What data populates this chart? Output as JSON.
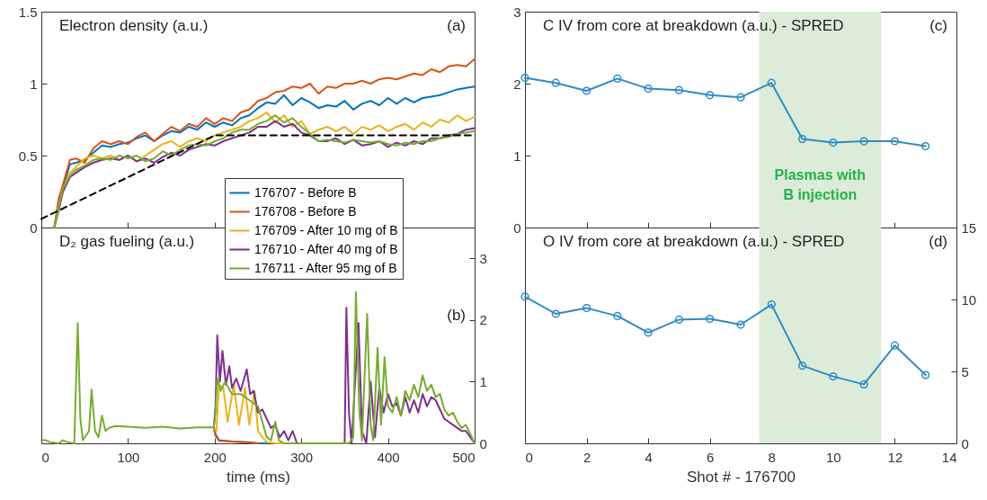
{
  "chart_data": [
    {
      "type": "line",
      "title": "Electron density (a.u.)",
      "annotations": [
        "(a)"
      ],
      "xlim": [
        0,
        500
      ],
      "xticks": [
        0,
        100,
        200,
        300,
        400,
        500
      ],
      "ylim": [
        0,
        1.5
      ],
      "yticks": [
        0,
        0.5,
        1,
        1.5
      ],
      "tick_labels": "y",
      "legend": "bottom right",
      "series": [
        {
          "name": "176707 - Before B",
          "color": "#0072bd",
          "x": [
            15,
            20,
            25,
            33,
            40,
            50,
            60,
            70,
            80,
            90,
            100,
            110,
            120,
            130,
            140,
            150,
            160,
            170,
            180,
            190,
            200,
            210,
            220,
            230,
            240,
            250,
            260,
            270,
            280,
            290,
            300,
            310,
            320,
            330,
            340,
            350,
            360,
            370,
            380,
            390,
            400,
            410,
            420,
            430,
            440,
            450,
            460,
            470,
            480,
            490,
            500
          ],
          "values": [
            0,
            0.18,
            0.28,
            0.44,
            0.45,
            0.47,
            0.52,
            0.57,
            0.56,
            0.58,
            0.59,
            0.62,
            0.64,
            0.6,
            0.64,
            0.67,
            0.66,
            0.7,
            0.68,
            0.73,
            0.7,
            0.73,
            0.71,
            0.76,
            0.78,
            0.83,
            0.87,
            0.86,
            0.92,
            0.85,
            0.9,
            0.87,
            0.83,
            0.85,
            0.84,
            0.88,
            0.82,
            0.86,
            0.88,
            0.85,
            0.9,
            0.86,
            0.9,
            0.87,
            0.9,
            0.91,
            0.92,
            0.94,
            0.96,
            0.97,
            0.98
          ]
        },
        {
          "name": "176708 - Before B",
          "color": "#d95319",
          "x": [
            15,
            20,
            25,
            33,
            40,
            50,
            60,
            70,
            80,
            90,
            100,
            110,
            120,
            130,
            140,
            150,
            160,
            170,
            180,
            190,
            200,
            210,
            220,
            230,
            240,
            250,
            260,
            270,
            280,
            290,
            300,
            310,
            320,
            330,
            340,
            350,
            360,
            370,
            380,
            390,
            400,
            410,
            420,
            430,
            440,
            450,
            460,
            470,
            480,
            490,
            500
          ],
          "values": [
            0,
            0.2,
            0.3,
            0.47,
            0.48,
            0.45,
            0.55,
            0.6,
            0.58,
            0.6,
            0.58,
            0.63,
            0.66,
            0.6,
            0.65,
            0.7,
            0.67,
            0.72,
            0.7,
            0.76,
            0.72,
            0.76,
            0.74,
            0.8,
            0.82,
            0.88,
            0.9,
            0.94,
            0.95,
            0.98,
            0.97,
            1.0,
            0.93,
            0.98,
            0.97,
            1.0,
            1.0,
            1.02,
            1.0,
            1.03,
            1.04,
            1.03,
            1.05,
            1.07,
            1.06,
            1.1,
            1.08,
            1.12,
            1.13,
            1.12,
            1.17
          ]
        },
        {
          "name": "176709 - After 10 mg of B",
          "color": "#edb120",
          "x": [
            15,
            20,
            25,
            33,
            40,
            50,
            60,
            70,
            80,
            90,
            100,
            110,
            120,
            130,
            140,
            150,
            160,
            170,
            180,
            190,
            200,
            210,
            220,
            230,
            240,
            250,
            260,
            270,
            280,
            290,
            300,
            310,
            320,
            330,
            340,
            350,
            360,
            370,
            380,
            390,
            400,
            410,
            420,
            430,
            440,
            450,
            460,
            470,
            480,
            490,
            500
          ],
          "values": [
            0,
            0.15,
            0.27,
            0.38,
            0.42,
            0.48,
            0.5,
            0.48,
            0.5,
            0.47,
            0.5,
            0.46,
            0.5,
            0.54,
            0.58,
            0.6,
            0.56,
            0.6,
            0.62,
            0.6,
            0.64,
            0.66,
            0.68,
            0.7,
            0.74,
            0.76,
            0.8,
            0.73,
            0.78,
            0.7,
            0.74,
            0.65,
            0.68,
            0.7,
            0.67,
            0.7,
            0.65,
            0.7,
            0.68,
            0.71,
            0.67,
            0.7,
            0.72,
            0.68,
            0.73,
            0.7,
            0.75,
            0.73,
            0.78,
            0.74,
            0.77
          ]
        },
        {
          "name": "176710 - After 40 mg of B",
          "color": "#7e2f8e",
          "x": [
            15,
            20,
            25,
            33,
            40,
            50,
            60,
            70,
            80,
            90,
            100,
            110,
            120,
            130,
            140,
            150,
            160,
            170,
            180,
            190,
            200,
            210,
            220,
            230,
            240,
            250,
            260,
            270,
            280,
            290,
            300,
            310,
            320,
            330,
            340,
            350,
            360,
            370,
            380,
            390,
            400,
            410,
            420,
            430,
            440,
            450,
            460,
            470,
            480,
            490,
            500
          ],
          "values": [
            0,
            0.12,
            0.25,
            0.35,
            0.38,
            0.42,
            0.45,
            0.47,
            0.48,
            0.47,
            0.5,
            0.46,
            0.48,
            0.45,
            0.49,
            0.52,
            0.5,
            0.54,
            0.56,
            0.58,
            0.57,
            0.6,
            0.62,
            0.64,
            0.66,
            0.7,
            0.7,
            0.74,
            0.7,
            0.72,
            0.66,
            0.64,
            0.6,
            0.6,
            0.62,
            0.58,
            0.61,
            0.57,
            0.58,
            0.6,
            0.56,
            0.59,
            0.57,
            0.6,
            0.58,
            0.62,
            0.62,
            0.64,
            0.65,
            0.68,
            0.69
          ]
        },
        {
          "name": "176711 - After 95 mg of B",
          "color": "#77ac30",
          "x": [
            15,
            20,
            25,
            33,
            40,
            50,
            60,
            70,
            80,
            90,
            100,
            110,
            120,
            130,
            140,
            150,
            160,
            170,
            180,
            190,
            200,
            210,
            220,
            230,
            240,
            250,
            260,
            270,
            280,
            290,
            300,
            310,
            320,
            330,
            340,
            350,
            360,
            370,
            380,
            390,
            400,
            410,
            420,
            430,
            440,
            450,
            460,
            470,
            480,
            490,
            500
          ],
          "values": [
            0,
            0.14,
            0.27,
            0.36,
            0.4,
            0.43,
            0.47,
            0.48,
            0.47,
            0.5,
            0.48,
            0.5,
            0.46,
            0.48,
            0.53,
            0.5,
            0.54,
            0.57,
            0.58,
            0.57,
            0.6,
            0.62,
            0.66,
            0.68,
            0.68,
            0.72,
            0.74,
            0.78,
            0.73,
            0.76,
            0.7,
            0.65,
            0.6,
            0.61,
            0.6,
            0.59,
            0.61,
            0.6,
            0.59,
            0.6,
            0.58,
            0.57,
            0.59,
            0.58,
            0.6,
            0.6,
            0.62,
            0.63,
            0.65,
            0.66,
            0.67
          ]
        },
        {
          "color": "#000000",
          "line_style": "dashed",
          "x": [
            0,
            200,
            500
          ],
          "values": [
            0.06,
            0.64,
            0.64
          ]
        }
      ]
    },
    {
      "type": "line",
      "title": "D₂ gas fueling (a.u.)",
      "annotations": [
        "(b)"
      ],
      "xlabel": "time (ms)",
      "xlim": [
        0,
        500
      ],
      "xticks": [
        0,
        100,
        200,
        300,
        400,
        500
      ],
      "ylim": [
        0,
        3.5
      ],
      "yticks": [
        0,
        1,
        2,
        3
      ],
      "series": [
        {
          "color": "#0072bd",
          "x": [
            199,
            201,
            205,
            220,
            240,
            250,
            260
          ],
          "values": [
            0.26,
            0.15,
            0.05,
            0.03,
            0.02,
            0,
            0
          ]
        },
        {
          "color": "#d95319",
          "x": [
            199,
            201,
            205,
            220,
            240,
            250
          ],
          "values": [
            0.26,
            0.12,
            0.04,
            0.03,
            0.01,
            0
          ]
        },
        {
          "color": "#edb120",
          "x": [
            199,
            202,
            205,
            210,
            215,
            222,
            228,
            235,
            240,
            246,
            250,
            255,
            260,
            270,
            280
          ],
          "values": [
            0.26,
            0.2,
            0.95,
            0.9,
            0.35,
            0.95,
            0.3,
            0.9,
            0.3,
            0.85,
            0.2,
            0.1,
            0.02,
            0,
            0
          ]
        },
        {
          "color": "#7e2f8e",
          "x": [
            199,
            201,
            203,
            206,
            209,
            213,
            217,
            220,
            225,
            230,
            237,
            241,
            245,
            250,
            255,
            260,
            265,
            270,
            275,
            280,
            285,
            290,
            295,
            300,
            350,
            352,
            355,
            358,
            366,
            370,
            375,
            380,
            385,
            390,
            395,
            400,
            405,
            410,
            415,
            420,
            425,
            430,
            435,
            440,
            445,
            450,
            455,
            460,
            465,
            470,
            475,
            480,
            485,
            490,
            495,
            500
          ],
          "values": [
            0.26,
            0.6,
            1.75,
            1.0,
            1.5,
            0.95,
            1.25,
            0.9,
            1.05,
            0.85,
            1.2,
            0.8,
            0.85,
            0.5,
            0.55,
            0.4,
            0.25,
            0.3,
            0.1,
            0.2,
            0.05,
            0.2,
            0,
            0,
            0,
            2.2,
            0.5,
            0,
            1.95,
            0.2,
            0,
            1.0,
            0.1,
            0.9,
            0.5,
            0.8,
            0.6,
            0.65,
            0.45,
            0.75,
            0.5,
            0.7,
            0.5,
            0.8,
            0.6,
            0.75,
            0.7,
            0.55,
            0.4,
            0.35,
            0.3,
            0.25,
            0.2,
            0.2,
            0.1,
            0
          ]
        },
        {
          "color": "#77ac30",
          "x": [
            0,
            5,
            10,
            20,
            25,
            30,
            38,
            42,
            45,
            48,
            55,
            58,
            62,
            66,
            70,
            74,
            78,
            85,
            100,
            120,
            140,
            160,
            180,
            199,
            201,
            203,
            207,
            212,
            220,
            230,
            240,
            250,
            255,
            260,
            265,
            270,
            274,
            280,
            300,
            355,
            360,
            363,
            367,
            370,
            376,
            380,
            383,
            388,
            392,
            396,
            400,
            405,
            410,
            415,
            420,
            425,
            430,
            435,
            440,
            445,
            450,
            455,
            460,
            465,
            470,
            475,
            480,
            485,
            490,
            495,
            500
          ],
          "values": [
            0.05,
            0.05,
            0.02,
            0,
            0.05,
            0.02,
            0,
            1.95,
            0.4,
            0.05,
            0.2,
            0.87,
            0.2,
            0.1,
            0.45,
            0.2,
            0.25,
            0.28,
            0.27,
            0.25,
            0.27,
            0.24,
            0.26,
            0.26,
            0.5,
            1.05,
            0.85,
            1.0,
            0.8,
            0.8,
            0.7,
            0.6,
            0.35,
            0.1,
            0.05,
            0.35,
            0.05,
            0,
            0,
            0,
            0.1,
            2.45,
            0.5,
            0.05,
            2.1,
            0.3,
            0.05,
            1.55,
            0.3,
            1.4,
            0.6,
            0.5,
            0.75,
            0.45,
            0.85,
            0.7,
            0.95,
            0.75,
            1.1,
            0.85,
            0.95,
            0.75,
            0.8,
            0.55,
            0.45,
            0.5,
            0.35,
            0.25,
            0.3,
            0.15,
            0
          ]
        }
      ]
    },
    {
      "type": "line",
      "title": "C IV from core at breakdown (a.u.) - SPRED",
      "annotations": [
        "(c)"
      ],
      "x": [
        0,
        1,
        2,
        3,
        4,
        5,
        6,
        7,
        8,
        9,
        10,
        11,
        12,
        13
      ],
      "xlim": [
        0,
        14
      ],
      "xticks": [
        0,
        2,
        4,
        6,
        8,
        10,
        12,
        14
      ],
      "ylim": [
        0,
        3
      ],
      "yticks": [
        0,
        1,
        2,
        3
      ],
      "tick_labels": "y",
      "marker": "circle",
      "bands": [
        {
          "axis": "x",
          "from": 7.6,
          "to": 11.55,
          "label": "Plasmas with\nB injection",
          "color": "#dcecd9"
        }
      ],
      "series": [
        {
          "color": "#2e8bc4",
          "values": [
            2.08,
            2.01,
            1.9,
            2.07,
            1.93,
            1.91,
            1.84,
            1.81,
            2.01,
            1.23,
            1.18,
            1.2,
            1.2,
            1.13
          ]
        }
      ]
    },
    {
      "type": "line",
      "title": "O IV from core at breakdown (a.u.) - SPRED",
      "annotations": [
        "(d)"
      ],
      "xlabel": "Shot # - 176700",
      "x": [
        0,
        1,
        2,
        3,
        4,
        5,
        6,
        7,
        8,
        9,
        10,
        11,
        12,
        13
      ],
      "xlim": [
        0,
        14
      ],
      "xticks": [
        0,
        2,
        4,
        6,
        8,
        10,
        12,
        14
      ],
      "ylim": [
        0,
        15
      ],
      "yticks": [
        0,
        5,
        10,
        15
      ],
      "marker": "circle",
      "bands": [
        {
          "axis": "x",
          "from": 7.6,
          "to": 11.55,
          "color": "#dcecd9"
        }
      ],
      "series": [
        {
          "color": "#2e8bc4",
          "values": [
            10.2,
            9.0,
            9.4,
            8.85,
            7.7,
            8.6,
            8.65,
            8.25,
            9.65,
            5.4,
            4.65,
            4.1,
            6.8,
            4.75
          ]
        }
      ]
    }
  ]
}
